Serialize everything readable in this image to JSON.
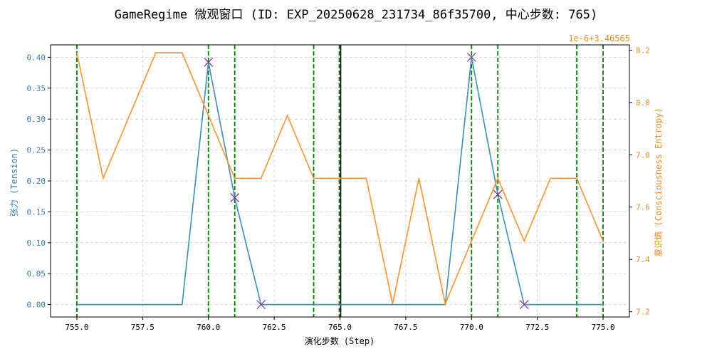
{
  "chart_data": {
    "type": "line",
    "title": "GameRegime 微观窗口 (ID: EXP_20250628_231734_86f35700, 中心步数: 765)",
    "xlabel": "演化步数 (Step)",
    "ylabel_left": "张力 (Tension)",
    "ylabel_right": "意识熵 (Consciousness Entropy)",
    "right_offset_label": "1e-6+3.46565",
    "xlim": [
      754.0,
      776.0
    ],
    "ylim_left": [
      -0.02,
      0.42
    ],
    "ylim_right": [
      7.18,
      8.22
    ],
    "x_ticks": [
      755.0,
      757.5,
      760.0,
      762.5,
      765.0,
      767.5,
      770.0,
      772.5,
      775.0
    ],
    "x_tick_labels": [
      "755.0",
      "757.5",
      "760.0",
      "762.5",
      "765.0",
      "767.5",
      "770.0",
      "772.5",
      "775.0"
    ],
    "y_ticks_left": [
      0.0,
      0.05,
      0.1,
      0.15,
      0.2,
      0.25,
      0.3,
      0.35,
      0.4
    ],
    "y_tick_labels_left": [
      "0.00",
      "0.05",
      "0.10",
      "0.15",
      "0.20",
      "0.25",
      "0.30",
      "0.35",
      "0.40"
    ],
    "y_ticks_right": [
      7.2,
      7.4,
      7.6,
      7.8,
      8.0,
      8.2
    ],
    "y_tick_labels_right": [
      "7.2",
      "7.4",
      "7.6",
      "7.8",
      "8.0",
      "8.2"
    ],
    "grid": true,
    "colors": {
      "tension": "#4a90be",
      "entropy": "#f5993a",
      "markers": "#7b2d8e",
      "event_lines": "#008000",
      "center_line": "#000000",
      "grid": "#cccccc",
      "left_axis_text": "#3a7fb0",
      "right_axis_text": "#f08a24"
    },
    "series": [
      {
        "axis": "left",
        "x": [
          755,
          756,
          757,
          758,
          759,
          760,
          761,
          762,
          763,
          764,
          765,
          766,
          767,
          768,
          769,
          770,
          771,
          772,
          773,
          774,
          775
        ],
        "values": [
          0,
          0,
          0,
          0,
          0,
          0.392,
          0.173,
          0,
          0,
          0,
          0,
          0,
          0,
          0,
          0,
          0.4,
          0.178,
          0,
          0,
          0,
          0
        ]
      },
      {
        "axis": "right",
        "x": [
          755,
          756,
          757,
          758,
          759,
          760,
          761,
          762,
          763,
          764,
          765,
          766,
          767,
          768,
          769,
          770,
          771,
          772,
          773,
          774,
          775
        ],
        "values": [
          8.19,
          7.71,
          7.95,
          8.19,
          8.19,
          7.95,
          7.71,
          7.71,
          7.95,
          7.71,
          7.71,
          7.71,
          7.23,
          7.71,
          7.23,
          7.47,
          7.71,
          7.47,
          7.71,
          7.71,
          7.47
        ]
      }
    ],
    "markers": {
      "x": [
        760,
        761,
        762,
        770,
        771,
        772
      ],
      "values": [
        0.392,
        0.173,
        0.0,
        0.4,
        0.178,
        0.0
      ]
    },
    "event_lines": [
      755,
      760,
      761,
      764,
      765,
      770,
      771,
      774,
      775
    ],
    "center_step": 765
  }
}
